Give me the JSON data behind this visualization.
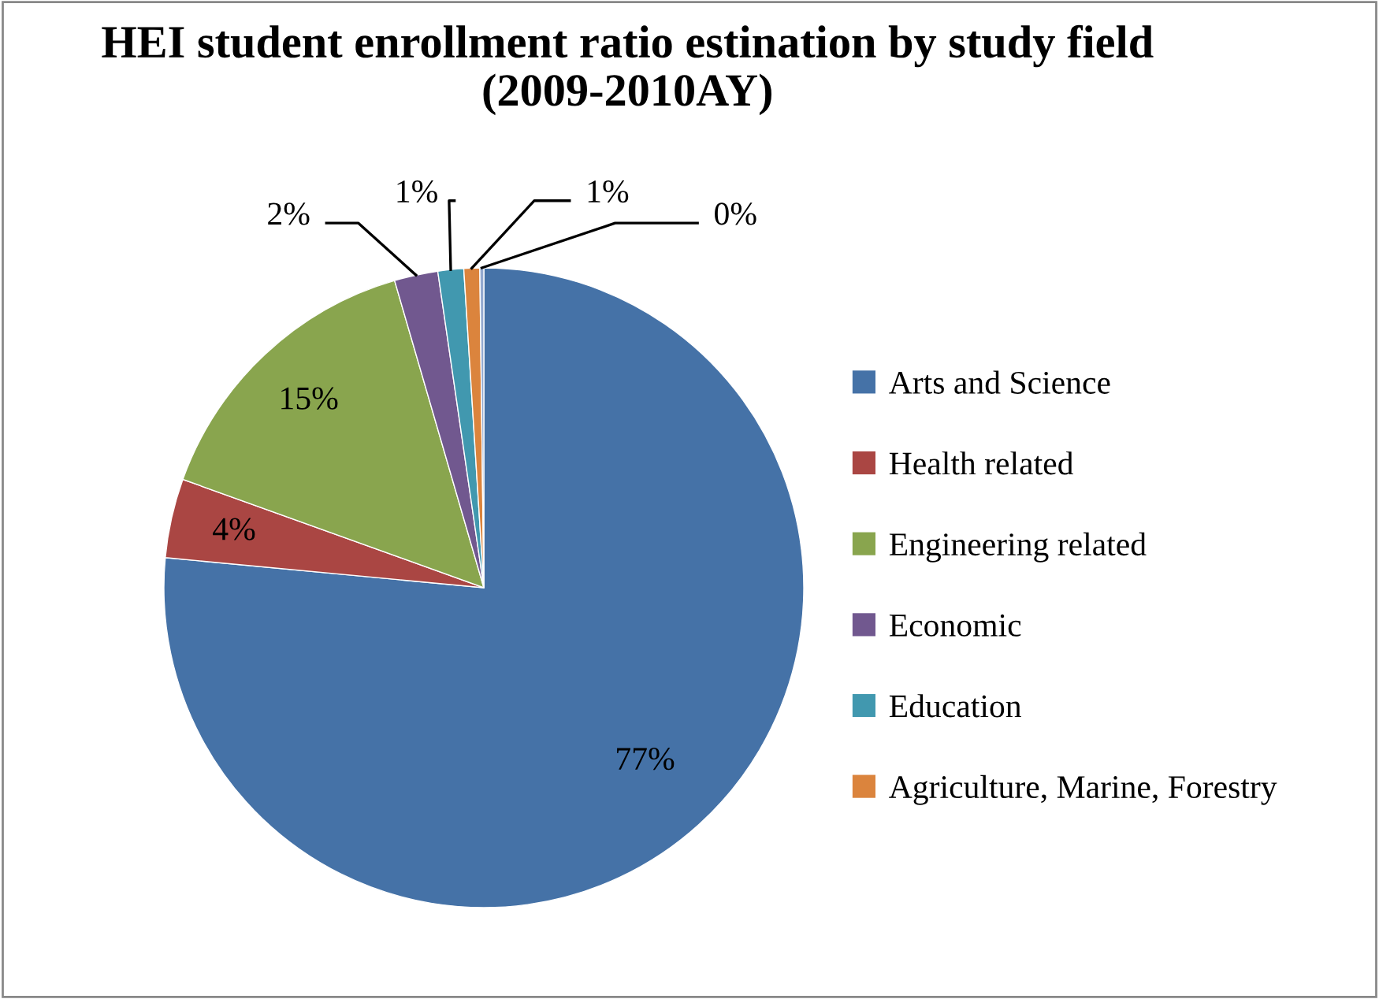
{
  "chart_data": {
    "type": "pie",
    "title": "HEI student enrollment ratio estination by study field (2009-2010AY)",
    "categories": [
      "Arts and Science",
      "Health related",
      "Engineering related",
      "Economic",
      "Education",
      "Agriculture, Marine, Forestry",
      null
    ],
    "values": [
      76.5,
      4.0,
      15.0,
      2.2,
      1.3,
      0.8,
      0.2
    ],
    "value_labels": [
      "77%",
      "4%",
      "15%",
      "2%",
      "1%",
      "1%",
      "0%"
    ],
    "colors": [
      "#4572a7",
      "#aa4643",
      "#89a54e",
      "#71588f",
      "#4198af",
      "#db843d",
      "#93a9cf"
    ],
    "legend": "right"
  }
}
